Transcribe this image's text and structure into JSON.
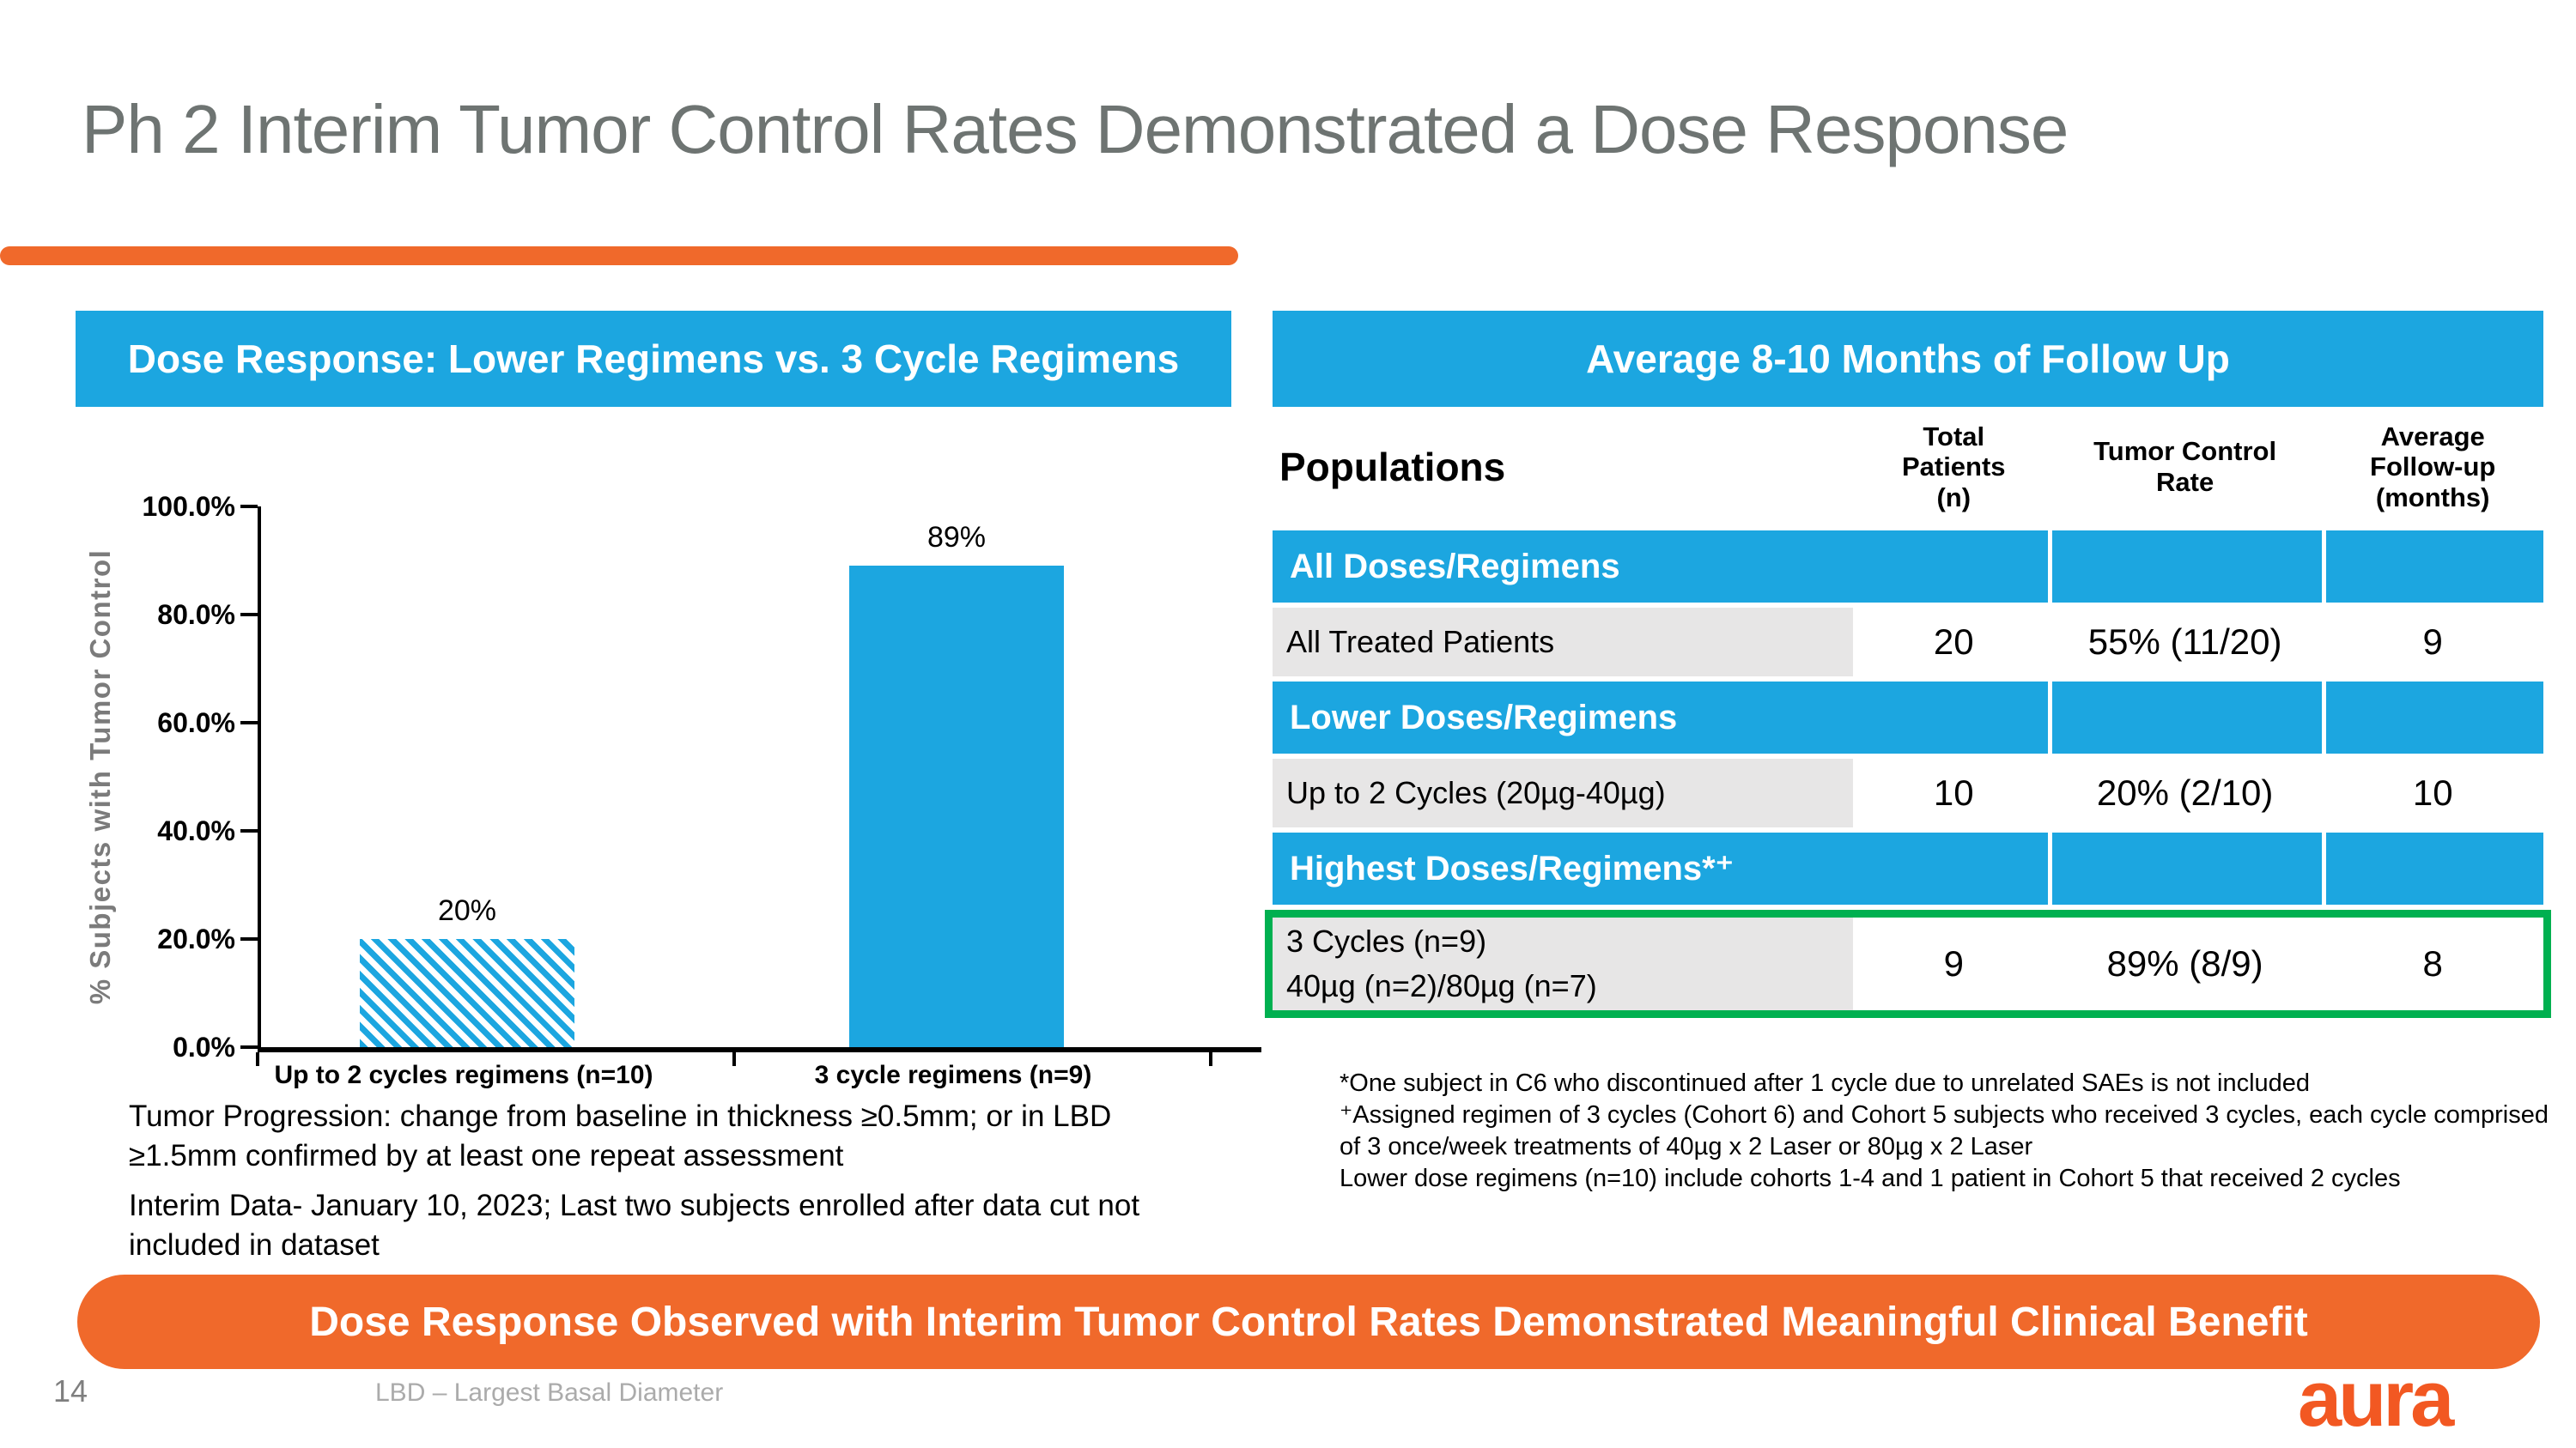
{
  "slide": {
    "title": "Ph 2 Interim Tumor Control Rates Demonstrated a Dose Response",
    "banner": "Dose Response Observed with Interim Tumor Control Rates Demonstrated Meaningful Clinical Benefit",
    "page_number": "14",
    "footer_note": "LBD – Largest Basal Diameter",
    "logo_text": "aura",
    "colors": {
      "accent_blue": "#1CA6E0",
      "accent_orange": "#F0692B",
      "highlight_green": "#00B050",
      "title_gray": "#6E7472",
      "row_gray": "#E7E6E6"
    }
  },
  "left_panel": {
    "header": "Dose Response: Lower Regimens vs. 3 Cycle Regimens",
    "notes": [
      "Tumor Progression: change from baseline in thickness ≥0.5mm; or in LBD\n≥1.5mm confirmed by at least one repeat assessment",
      "Interim Data- January 10, 2023; Last two subjects enrolled after data cut not\nincluded in dataset"
    ]
  },
  "chart_data": {
    "type": "bar",
    "categories": [
      "Up to 2 cycles regimens (n=10)",
      "3 cycle regimens (n=9)"
    ],
    "values": [
      20,
      89
    ],
    "value_labels": [
      "20%",
      "89%"
    ],
    "bar_styles": [
      "hatched",
      "solid"
    ],
    "bar_color": "#1CA6E0",
    "title": "Dose Response: Lower Regimens vs. 3 Cycle Regimens",
    "xlabel": "",
    "ylabel": "% Subjects with Tumor Control",
    "ylim": [
      0,
      100
    ],
    "yticks": [
      "100.0%",
      "80.0%",
      "60.0%",
      "40.0%",
      "20.0%",
      "0.0%"
    ],
    "grid": false,
    "legend": false
  },
  "right_panel": {
    "header": "Average 8-10 Months of Follow Up",
    "table": {
      "columns": [
        "Populations",
        "Total\nPatients\n(n)",
        "Tumor Control\nRate",
        "Average\nFollow-up\n(months)"
      ],
      "rows": [
        {
          "type": "section",
          "label": "All Doses/Regimens"
        },
        {
          "type": "data",
          "label": "All Treated Patients",
          "n": "20",
          "rate": "55% (11/20)",
          "followup": "9",
          "highlight": false
        },
        {
          "type": "section",
          "label": "Lower Doses/Regimens"
        },
        {
          "type": "data",
          "label": "Up to 2 Cycles (20µg-40µg)",
          "n": "10",
          "rate": "20% (2/10)",
          "followup": "10",
          "highlight": false
        },
        {
          "type": "section",
          "label": "Highest Doses/Regimens*⁺"
        },
        {
          "type": "data",
          "label": "3 Cycles (n=9)\n40µg (n=2)/80µg (n=7)",
          "n": "9",
          "rate": "89% (8/9)",
          "followup": "8",
          "highlight": true
        }
      ]
    },
    "footnotes": [
      "*One subject in C6 who discontinued after 1 cycle due to unrelated SAEs is not included",
      "⁺Assigned regimen of 3 cycles (Cohort 6) and Cohort 5 subjects who received 3 cycles, each cycle comprised",
      "of 3 once/week treatments of 40µg x 2 Laser or 80µg x 2 Laser",
      "Lower dose regimens (n=10) include cohorts 1-4 and 1 patient in Cohort 5 that received 2 cycles"
    ]
  }
}
